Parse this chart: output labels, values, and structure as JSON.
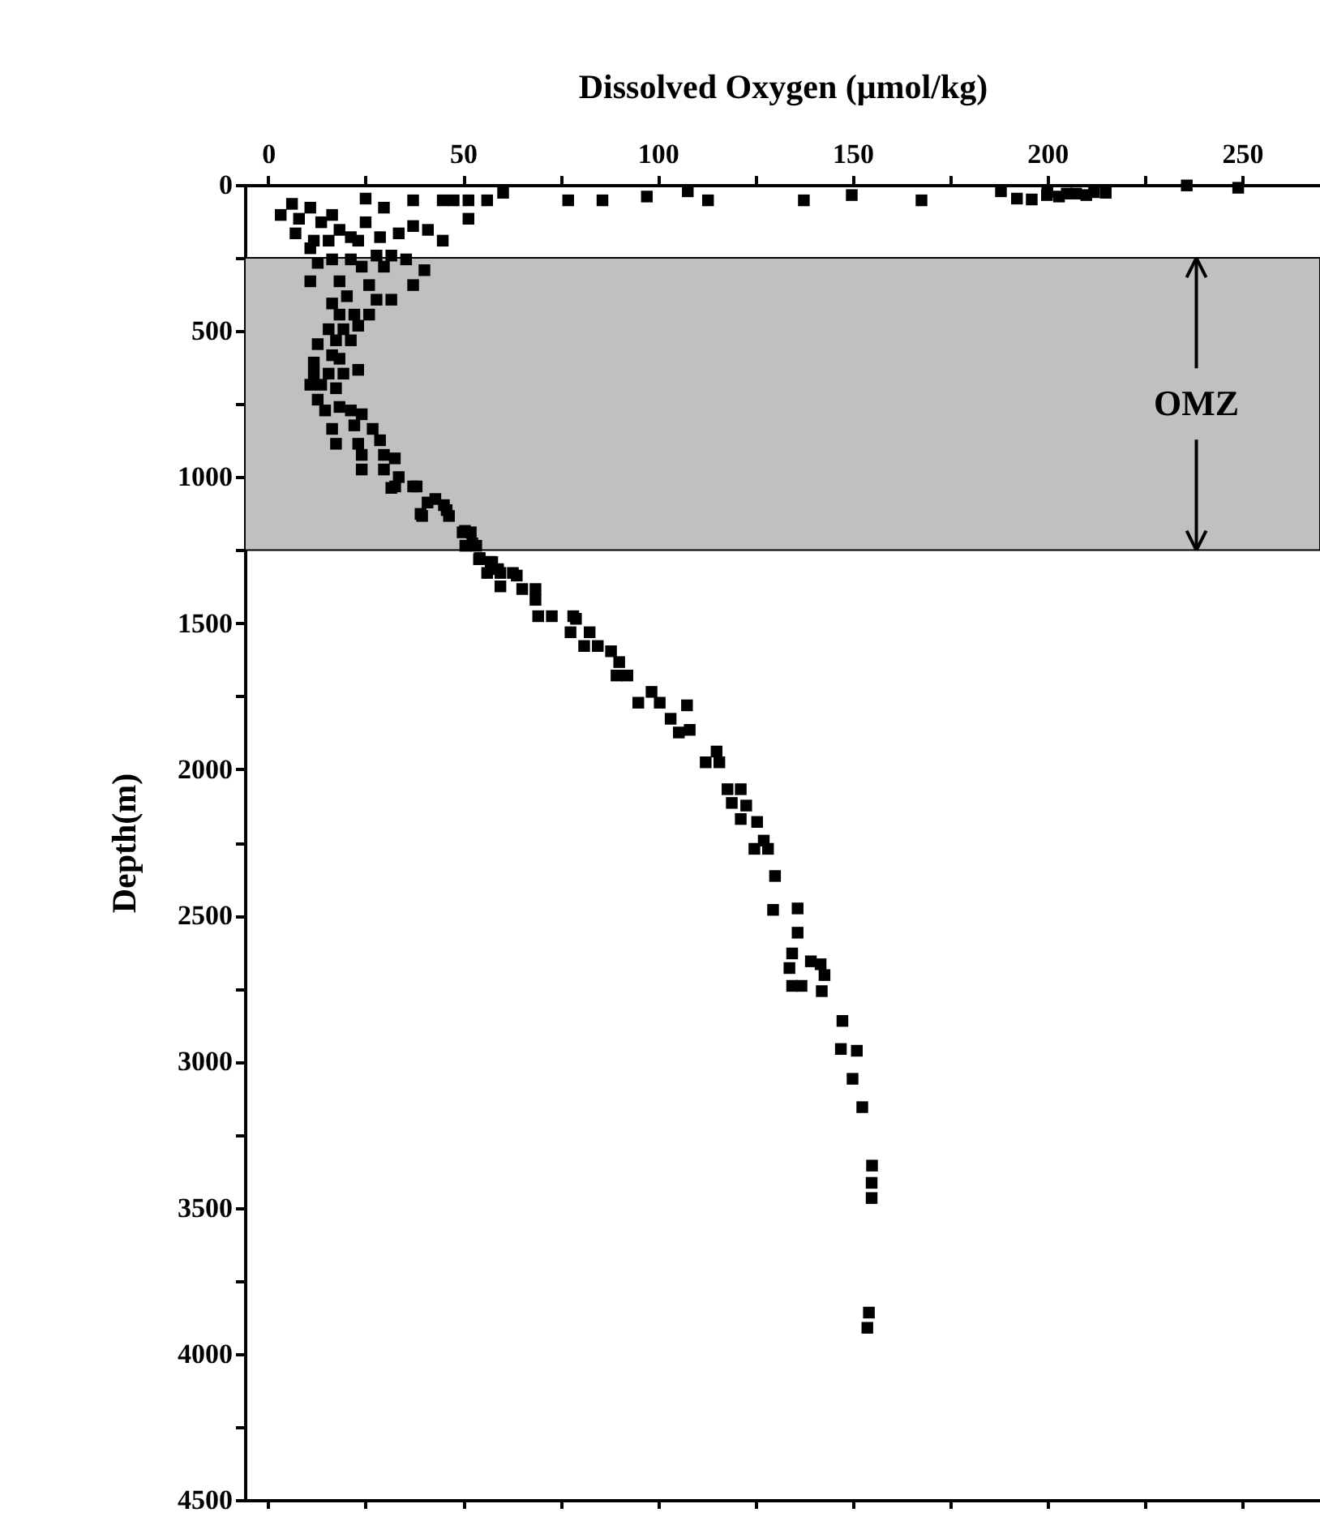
{
  "chart_data": {
    "type": "scatter",
    "xlabel": "Dissolved Oxygen (μmol/kg)",
    "ylabel": "Depth(m)",
    "xlim": [
      -6,
      270
    ],
    "ylim": [
      4500,
      0
    ],
    "xticks": [
      0,
      {
        "value": 25,
        "label": null
      },
      50,
      {
        "value": 75,
        "label": null
      },
      100,
      {
        "value": 125,
        "label": null
      },
      150,
      {
        "value": 175,
        "label": null
      },
      200,
      {
        "value": 225,
        "label": null
      },
      250
    ],
    "yticks": [
      0,
      {
        "value": 250,
        "label": null
      },
      500,
      {
        "value": 750,
        "label": null
      },
      1000,
      {
        "value": 1250,
        "label": null
      },
      1500,
      {
        "value": 1750,
        "label": null
      },
      2000,
      {
        "value": 2250,
        "label": null
      },
      2500,
      {
        "value": 2750,
        "label": null
      },
      3000,
      {
        "value": 3250,
        "label": null
      },
      3500,
      {
        "value": 3750,
        "label": null
      },
      4000,
      {
        "value": 4250,
        "label": null
      },
      4500
    ],
    "grid": false,
    "marker": "square",
    "bands": [
      {
        "axis": "y",
        "from": 250,
        "to": 1250,
        "label": "OMZ",
        "color": "#c0c0c0"
      }
    ],
    "series": [
      {
        "color": "#000000",
        "x": [
          44.8,
          47.6,
          51.4,
          56.2,
          60.3,
          77.0,
          85.8,
          97.2,
          107.7,
          112.9,
          137.5,
          149.8,
          167.7,
          188.1,
          192.2,
          196,
          199.9,
          200,
          203,
          205,
          207.4,
          210,
          212,
          215,
          235.8,
          249,
          51.4,
          3.2,
          6.1,
          7.9,
          10.8,
          13.6,
          16.4,
          18.3,
          7.0,
          11.7,
          15.5,
          21.2,
          23.1,
          28.7,
          25.0,
          29.7,
          37.2,
          25.0,
          37.2,
          41.0,
          44.8,
          33.5,
          10.8,
          12.7,
          16.4,
          21.2,
          27.8,
          31.6,
          35.4,
          24.0,
          29.7,
          40.1,
          10.8,
          18.3,
          25.9,
          37.2,
          20.2,
          27.8,
          31.6,
          16.4,
          22.1,
          18.3,
          25.9,
          15.5,
          19.3,
          23.1,
          12.7,
          17.4,
          21.2,
          16.4,
          11.7,
          18.3,
          11.7,
          15.5,
          19.3,
          23.1,
          10.8,
          13.6,
          12.7,
          17.4,
          14.6,
          18.3,
          21.2,
          24.0,
          16.4,
          22.1,
          26.8,
          17.4,
          23.1,
          28.7,
          24.0,
          29.7,
          32.5,
          24.0,
          29.7,
          33.5,
          31.6,
          37.2,
          39.1,
          42.9,
          45.8,
          50.5,
          52.4,
          54.3,
          57.1,
          59.0,
          62.8,
          32.6,
          38.1,
          39.5,
          40.9,
          45.1,
          46.4,
          49.9,
          52.0,
          50.6,
          53.4,
          54.1,
          57.5,
          56.2,
          59.6,
          59.6,
          63.8,
          65.2,
          68.6,
          68.6,
          69.3,
          72.8,
          78.3,
          77.6,
          79.0,
          82.5,
          81.1,
          84.6,
          88.0,
          90.1,
          89.4,
          92.2,
          95.0,
          98.4,
          100.5,
          103.3,
          105.4,
          108.2,
          107.5,
          112.3,
          115.1,
          115.8,
          117.9,
          121.3,
          119.0,
          122.7,
          121.3,
          125.5,
          124.8,
          128.3,
          127.2,
          130.1,
          129.6,
          135.9,
          135.9,
          134.5,
          133.8,
          139.3,
          141.8,
          142.8,
          134.5,
          136.9,
          142.1,
          147.4,
          147.0,
          151.1,
          150.0,
          152.5,
          155.0,
          154.9,
          154.9,
          154.2,
          153.8
        ],
        "values": [
          53,
          53,
          53,
          53,
          27,
          53,
          53,
          40,
          22,
          53,
          53,
          35,
          53,
          22,
          47,
          50,
          35,
          25,
          40,
          30,
          30,
          35,
          25,
          27,
          2,
          10,
          116,
          103,
          65,
          116,
          78,
          128,
          103,
          154,
          166,
          191,
          191,
          179,
          191,
          179,
          128,
          78,
          53,
          47,
          141,
          154,
          191,
          166,
          217,
          267,
          255,
          255,
          242,
          242,
          255,
          280,
          280,
          292,
          330,
          330,
          343,
          343,
          381,
          393,
          393,
          406,
          444,
          444,
          444,
          494,
          494,
          482,
          545,
          532,
          532,
          583,
          608,
          595,
          646,
          646,
          646,
          633,
          684,
          684,
          735,
          696,
          772,
          760,
          772,
          785,
          835,
          823,
          835,
          886,
          886,
          874,
          924,
          924,
          936,
          974,
          974,
          1000,
          1037,
          1032,
          1126,
          1075,
          1113,
          1184,
          1227,
          1277,
          1290,
          1315,
          1328,
          1032,
          1032,
          1133,
          1087,
          1096,
          1133,
          1189,
          1189,
          1235,
          1235,
          1281,
          1291,
          1328,
          1328,
          1374,
          1337,
          1383,
          1383,
          1420,
          1476,
          1476,
          1476,
          1531,
          1485,
          1531,
          1578,
          1578,
          1596,
          1633,
          1679,
          1679,
          1772,
          1735,
          1772,
          1827,
          1874,
          1865,
          1781,
          1976,
          1939,
          1976,
          2068,
          2068,
          2115,
          2124,
          2170,
          2180,
          2272,
          2272,
          2244,
          2365,
          2481,
          2476,
          2559,
          2630,
          2680,
          2657,
          2667,
          2704,
          2741,
          2741,
          2759,
          2861,
          2957,
          2963,
          3059,
          3156,
          3356,
          3415,
          3467,
          3859,
          3911
        ]
      }
    ]
  }
}
